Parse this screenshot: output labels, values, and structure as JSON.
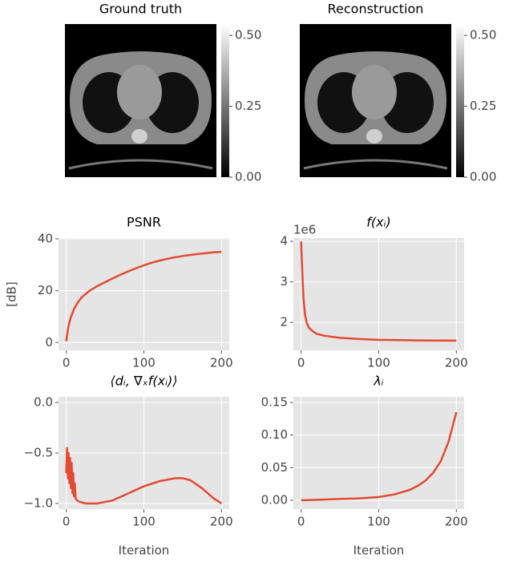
{
  "chart_data": [
    {
      "type": "image",
      "title": "Ground truth",
      "colorbar": {
        "clim": [
          0,
          0.54
        ],
        "ticks": [
          {
            "value": 0,
            "label": "0.00"
          },
          0.25,
          {
            "value": 0.5,
            "label": "0.50"
          }
        ]
      }
    },
    {
      "type": "image",
      "title": "Reconstruction",
      "colorbar": {
        "clim": [
          0,
          0.54
        ],
        "ticks": [
          {
            "value": 0,
            "label": "0.00"
          },
          0.25,
          {
            "value": 0.5,
            "label": "0.50"
          }
        ]
      }
    },
    {
      "type": "line",
      "title": "PSNR",
      "ylabel": "[dB]",
      "color": "#e24a33",
      "x": [
        0,
        2,
        5,
        10,
        15,
        20,
        30,
        40,
        50,
        60,
        70,
        80,
        90,
        100,
        110,
        120,
        130,
        140,
        150,
        160,
        170,
        180,
        190,
        200
      ],
      "values": [
        0.5,
        5,
        9,
        13,
        15.5,
        17.5,
        20,
        21.8,
        23.3,
        24.8,
        26.2,
        27.5,
        28.7,
        29.8,
        30.8,
        31.6,
        32.3,
        32.9,
        33.4,
        33.8,
        34.2,
        34.5,
        34.8,
        35.0
      ],
      "xlim": [
        -10,
        210
      ],
      "ylim": [
        -3,
        40.3
      ],
      "xticks": [
        0,
        100,
        200
      ],
      "yticks": [
        0,
        20,
        40
      ],
      "grid": true
    },
    {
      "type": "line",
      "title": "f(xᵢ)",
      "offset_text": "1e6",
      "color": "#e24a33",
      "x": [
        0,
        1,
        2,
        3,
        5,
        7,
        10,
        15,
        20,
        30,
        50,
        75,
        100,
        150,
        200
      ],
      "values": [
        4.0,
        3.5,
        3.0,
        2.6,
        2.2,
        2.0,
        1.87,
        1.78,
        1.72,
        1.67,
        1.62,
        1.59,
        1.57,
        1.555,
        1.55
      ],
      "xlim": [
        -10,
        210
      ],
      "ylim": [
        1.31,
        4.08
      ],
      "xticks": [
        0,
        100,
        200
      ],
      "yticks": [
        2,
        3,
        4
      ],
      "grid": true
    },
    {
      "type": "line",
      "title": "⟨dᵢ, ∇ₓf(xᵢ)⟩",
      "xlabel": "Iteration",
      "color": "#e24a33",
      "x": [
        0,
        1,
        2,
        3,
        4,
        5,
        6,
        7,
        8,
        9,
        10,
        11,
        12,
        14,
        16,
        20,
        25,
        30,
        40,
        60,
        80,
        100,
        120,
        140,
        150,
        160,
        175,
        190,
        200
      ],
      "values": [
        -0.7,
        -0.45,
        -0.75,
        -0.5,
        -0.8,
        -0.55,
        -0.85,
        -0.6,
        -0.9,
        -0.7,
        -0.93,
        -0.8,
        -0.95,
        -0.97,
        -0.98,
        -0.99,
        -1.0,
        -1.0,
        -1.0,
        -0.97,
        -0.9,
        -0.83,
        -0.78,
        -0.75,
        -0.75,
        -0.77,
        -0.85,
        -0.95,
        -1.0
      ],
      "xlim": [
        -10,
        210
      ],
      "ylim": [
        -1.056,
        0.056
      ],
      "xticks": [
        0,
        100,
        200
      ],
      "yticks": [
        {
          "value": -1.0,
          "label": "−1.0"
        },
        {
          "value": -0.5,
          "label": "−0.5"
        },
        {
          "value": 0,
          "label": "0.0"
        }
      ],
      "grid": true
    },
    {
      "type": "line",
      "title": "λᵢ",
      "xlabel": "Iteration",
      "color": "#e24a33",
      "x": [
        0,
        25,
        50,
        75,
        100,
        120,
        140,
        150,
        160,
        170,
        180,
        190,
        200
      ],
      "values": [
        0,
        0.001,
        0.002,
        0.003,
        0.005,
        0.009,
        0.016,
        0.022,
        0.03,
        0.042,
        0.06,
        0.09,
        0.135
      ],
      "xlim": [
        -10,
        210
      ],
      "ylim": [
        -0.0135,
        0.1586
      ],
      "xticks": [
        0,
        100,
        200
      ],
      "yticks": [
        {
          "value": 0,
          "label": "0.00"
        },
        0.05,
        {
          "value": 0.1,
          "label": "0.10"
        },
        0.15
      ],
      "grid": true
    }
  ]
}
